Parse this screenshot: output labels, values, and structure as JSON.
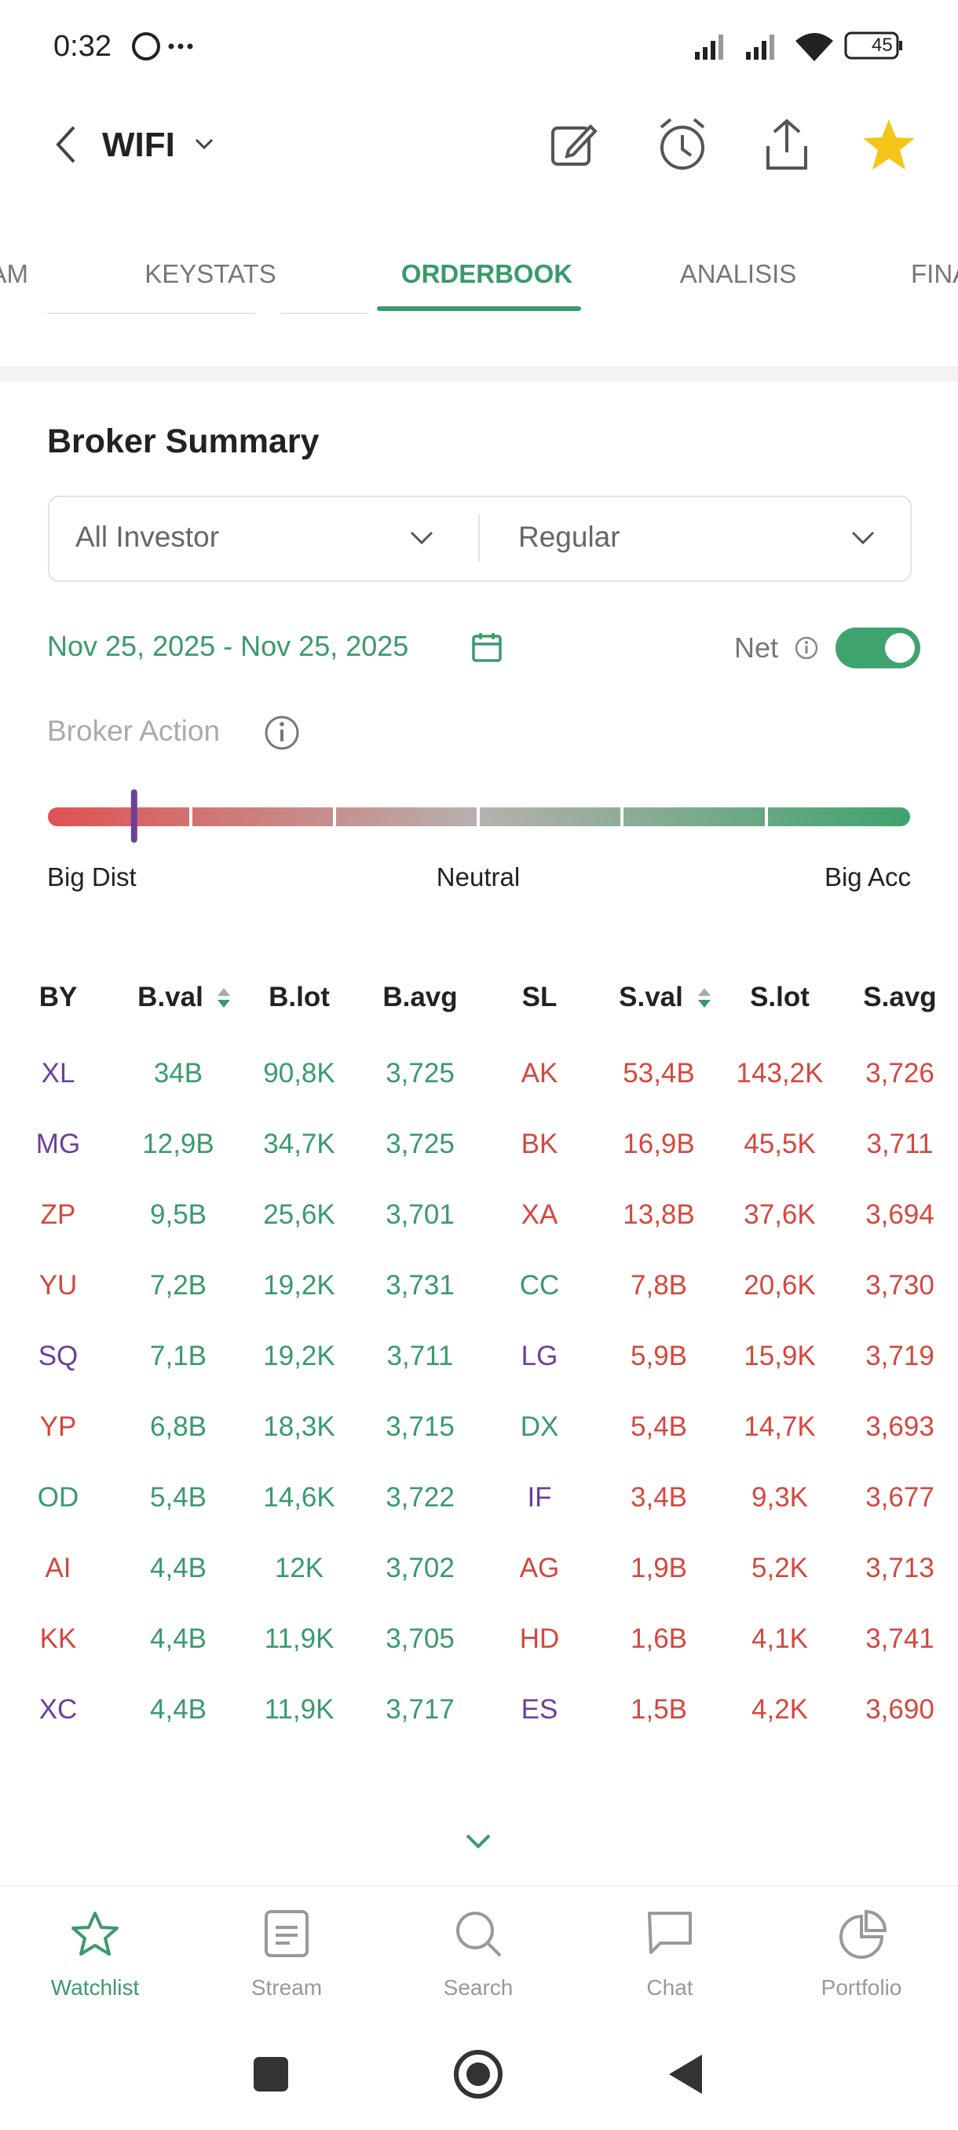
{
  "status_bar": {
    "time": "0:32",
    "battery": "45"
  },
  "header": {
    "title": "WIFI"
  },
  "tabs": {
    "items": [
      "AM",
      "KEYSTATS",
      "ORDERBOOK",
      "ANALISIS",
      "FINA"
    ],
    "active": 2
  },
  "broker_summary": {
    "title": "Broker Summary",
    "filters": [
      "All Investor",
      "Regular"
    ],
    "date_range": "Nov 25, 2025 - Nov 25, 2025",
    "net_label": "Net",
    "net_enabled": true,
    "action_label": "Broker Action",
    "action_marker": 0.1,
    "scale_labels": [
      "Big Dist",
      "Neutral",
      "Big Acc"
    ]
  },
  "table": {
    "columns": [
      "BY",
      "B.val",
      "B.lot",
      "B.avg",
      "SL",
      "S.val",
      "S.lot",
      "S.avg"
    ],
    "sortable": [
      1,
      5
    ],
    "buy_color": "#3a9a6c",
    "sell_color": "#d4483f",
    "rows": [
      {
        "cells": [
          "XL",
          "34B",
          "90,8K",
          "3,725",
          "AK",
          "53,4B",
          "143,2K",
          "3,726"
        ],
        "by_color": "#6d3f9c",
        "sl_color": "#d4483f"
      },
      {
        "cells": [
          "MG",
          "12,9B",
          "34,7K",
          "3,725",
          "BK",
          "16,9B",
          "45,5K",
          "3,711"
        ],
        "by_color": "#6d3f9c",
        "sl_color": "#d4483f"
      },
      {
        "cells": [
          "ZP",
          "9,5B",
          "25,6K",
          "3,701",
          "XA",
          "13,8B",
          "37,6K",
          "3,694"
        ],
        "by_color": "#d4483f",
        "sl_color": "#d4483f"
      },
      {
        "cells": [
          "YU",
          "7,2B",
          "19,2K",
          "3,731",
          "CC",
          "7,8B",
          "20,6K",
          "3,730"
        ],
        "by_color": "#d4483f",
        "sl_color": "#3a9a6c"
      },
      {
        "cells": [
          "SQ",
          "7,1B",
          "19,2K",
          "3,711",
          "LG",
          "5,9B",
          "15,9K",
          "3,719"
        ],
        "by_color": "#6d3f9c",
        "sl_color": "#6d3f9c"
      },
      {
        "cells": [
          "YP",
          "6,8B",
          "18,3K",
          "3,715",
          "DX",
          "5,4B",
          "14,7K",
          "3,693"
        ],
        "by_color": "#d4483f",
        "sl_color": "#3a9a6c"
      },
      {
        "cells": [
          "OD",
          "5,4B",
          "14,6K",
          "3,722",
          "IF",
          "3,4B",
          "9,3K",
          "3,677"
        ],
        "by_color": "#3a9a6c",
        "sl_color": "#6d3f9c"
      },
      {
        "cells": [
          "AI",
          "4,4B",
          "12K",
          "3,702",
          "AG",
          "1,9B",
          "5,2K",
          "3,713"
        ],
        "by_color": "#d4483f",
        "sl_color": "#d4483f"
      },
      {
        "cells": [
          "KK",
          "4,4B",
          "11,9K",
          "3,705",
          "HD",
          "1,6B",
          "4,1K",
          "3,741"
        ],
        "by_color": "#d4483f",
        "sl_color": "#d4483f"
      },
      {
        "cells": [
          "XC",
          "4,4B",
          "11,9K",
          "3,717",
          "ES",
          "1,5B",
          "4,2K",
          "3,690"
        ],
        "by_color": "#6d3f9c",
        "sl_color": "#6d3f9c"
      }
    ]
  },
  "bottom_nav": {
    "items": [
      "Watchlist",
      "Stream",
      "Search",
      "Chat",
      "Portfolio"
    ],
    "active": 0
  }
}
